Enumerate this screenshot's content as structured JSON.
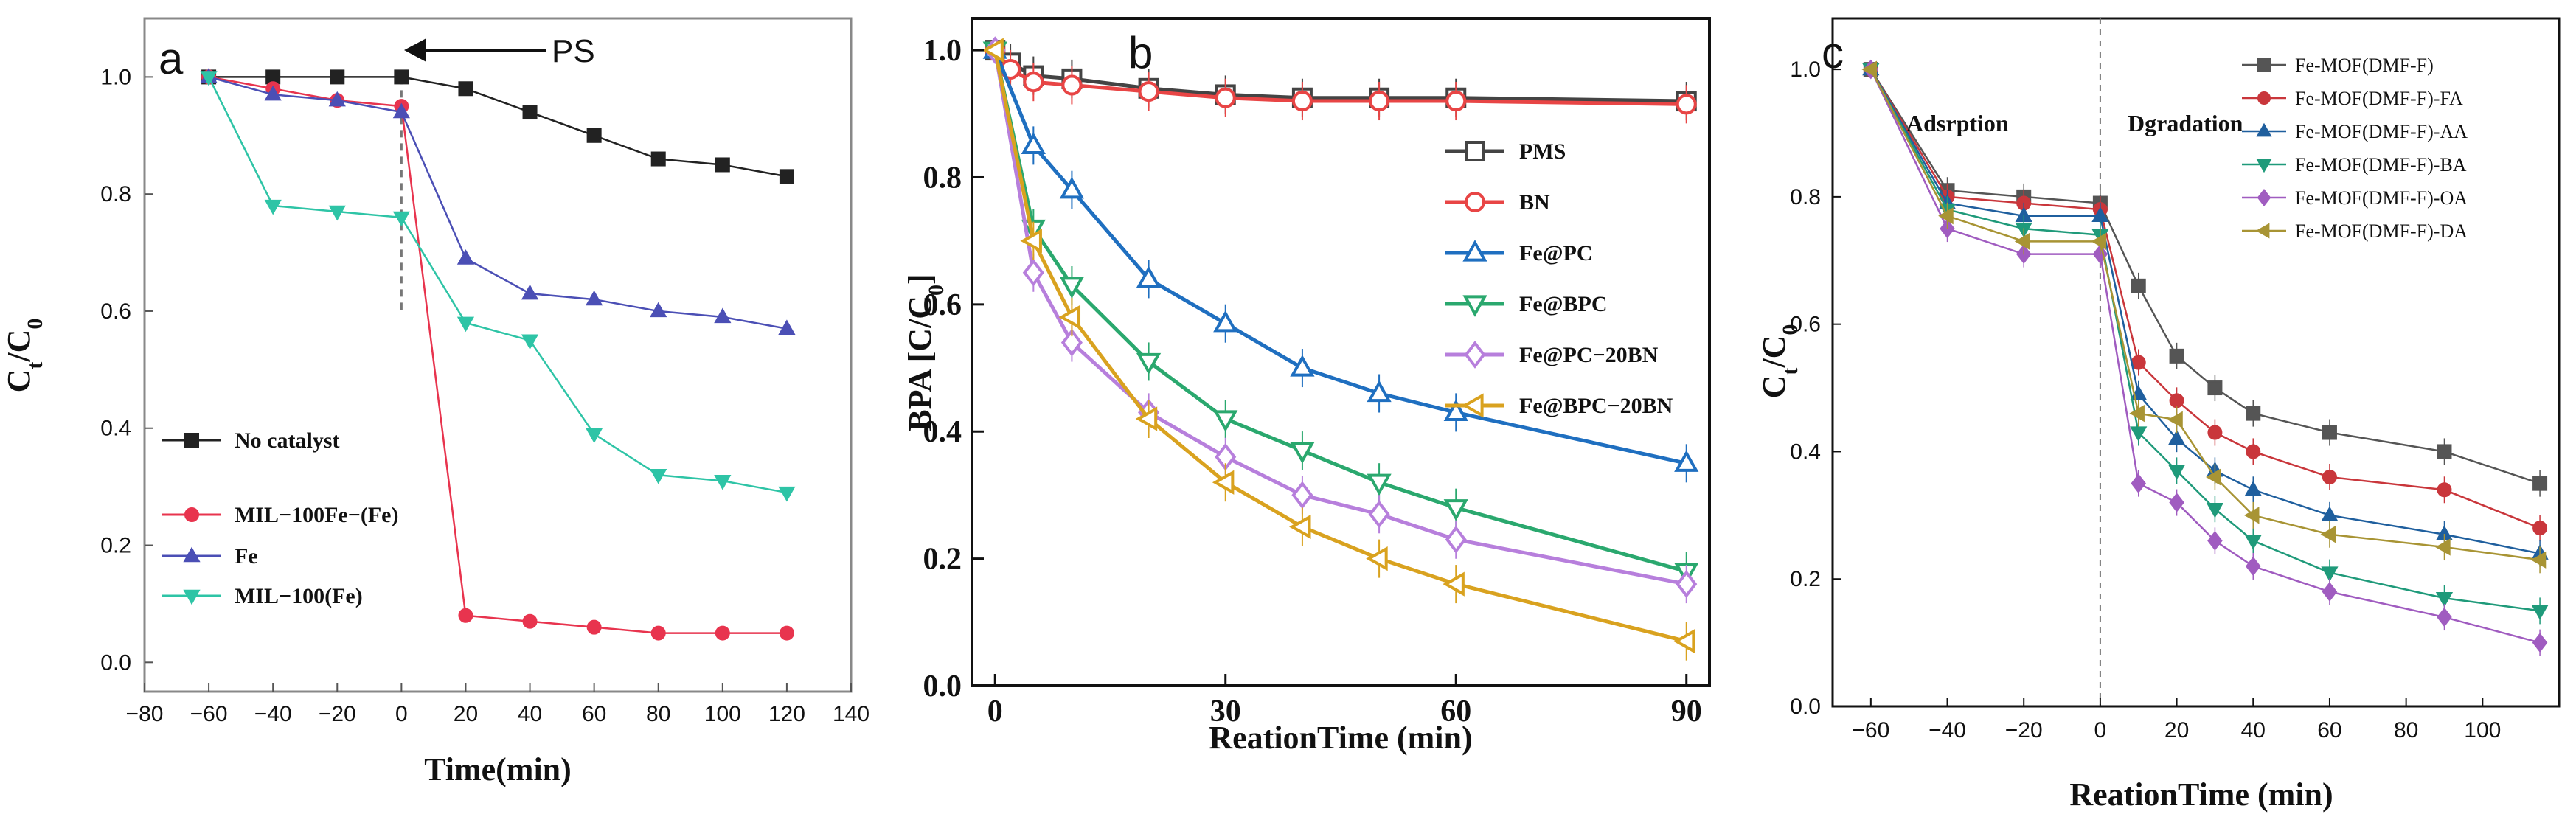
{
  "chart_data": [
    {
      "panel": "a",
      "type": "line",
      "xlabel": "Time(min)",
      "ylabel": "Ct/C0",
      "xlim": [
        -80,
        140
      ],
      "ylim": [
        -0.05,
        1.1
      ],
      "xticks": [
        -80,
        -60,
        -40,
        -20,
        0,
        20,
        40,
        60,
        80,
        100,
        120,
        140
      ],
      "yticks": [
        0.0,
        0.2,
        0.4,
        0.6,
        0.8,
        1.0
      ],
      "annotation": "PS",
      "legend_position": "bottom-left",
      "series": [
        {
          "name": "No catalyst",
          "color": "#222222",
          "marker": "square",
          "x": [
            -60,
            -40,
            -20,
            0,
            20,
            40,
            60,
            80,
            100,
            120
          ],
          "y": [
            1.0,
            1.0,
            1.0,
            1.0,
            0.98,
            0.94,
            0.9,
            0.86,
            0.85,
            0.83
          ]
        },
        {
          "name": "MIL−100Fe−(Fe)",
          "color": "#e8344e",
          "marker": "circle",
          "x": [
            -60,
            -40,
            -20,
            0,
            20,
            40,
            60,
            80,
            100,
            120
          ],
          "y": [
            1.0,
            0.98,
            0.96,
            0.95,
            0.08,
            0.07,
            0.06,
            0.05,
            0.05,
            0.05
          ]
        },
        {
          "name": "Fe",
          "color": "#4b4fb5",
          "marker": "triangle-up",
          "x": [
            -60,
            -40,
            -20,
            0,
            20,
            40,
            60,
            80,
            100,
            120
          ],
          "y": [
            1.0,
            0.97,
            0.96,
            0.94,
            0.69,
            0.63,
            0.62,
            0.6,
            0.59,
            0.57
          ]
        },
        {
          "name": "MIL−100(Fe)",
          "color": "#2ec4a6",
          "marker": "triangle-down",
          "x": [
            -60,
            -40,
            -20,
            0,
            20,
            40,
            60,
            80,
            100,
            120
          ],
          "y": [
            1.0,
            0.78,
            0.77,
            0.76,
            0.58,
            0.55,
            0.39,
            0.32,
            0.31,
            0.29
          ]
        }
      ]
    },
    {
      "panel": "b",
      "type": "line",
      "xlabel": "ReationTime (min)",
      "ylabel": "BPA [C/C0]",
      "xlim": [
        -3,
        93
      ],
      "ylim": [
        0.0,
        1.05
      ],
      "xticks": [
        0,
        30,
        60,
        90
      ],
      "yticks": [
        0.0,
        0.2,
        0.4,
        0.6,
        0.8,
        1.0
      ],
      "legend_position": "right-middle",
      "series": [
        {
          "name": "PMS",
          "color": "#444444",
          "marker": "square-open",
          "x": [
            0,
            2,
            5,
            10,
            20,
            30,
            40,
            50,
            60,
            90
          ],
          "y": [
            1.0,
            0.98,
            0.96,
            0.955,
            0.94,
            0.93,
            0.925,
            0.925,
            0.925,
            0.92
          ]
        },
        {
          "name": "BN",
          "color": "#e84545",
          "marker": "circle-open",
          "x": [
            0,
            2,
            5,
            10,
            20,
            30,
            40,
            50,
            60,
            90
          ],
          "y": [
            1.0,
            0.97,
            0.95,
            0.945,
            0.935,
            0.925,
            0.92,
            0.92,
            0.92,
            0.915
          ]
        },
        {
          "name": "Fe@PC",
          "color": "#1f6fc0",
          "marker": "triangle-up-open",
          "x": [
            0,
            5,
            10,
            20,
            30,
            40,
            50,
            60,
            90
          ],
          "y": [
            1.0,
            0.85,
            0.78,
            0.64,
            0.57,
            0.5,
            0.46,
            0.43,
            0.35
          ]
        },
        {
          "name": "Fe@BPC",
          "color": "#2aa86e",
          "marker": "triangle-down-open",
          "x": [
            0,
            5,
            10,
            20,
            30,
            40,
            50,
            60,
            90
          ],
          "y": [
            1.0,
            0.72,
            0.63,
            0.51,
            0.42,
            0.37,
            0.32,
            0.28,
            0.18
          ]
        },
        {
          "name": "Fe@PC−20BN",
          "color": "#b77fdc",
          "marker": "diamond-open",
          "x": [
            0,
            5,
            10,
            20,
            30,
            40,
            50,
            60,
            90
          ],
          "y": [
            1.0,
            0.65,
            0.54,
            0.43,
            0.36,
            0.3,
            0.27,
            0.23,
            0.16
          ]
        },
        {
          "name": "Fe@BPC−20BN",
          "color": "#d9a21f",
          "marker": "triangle-left-open",
          "x": [
            0,
            5,
            10,
            20,
            30,
            40,
            50,
            60,
            90
          ],
          "y": [
            1.0,
            0.7,
            0.58,
            0.42,
            0.32,
            0.25,
            0.2,
            0.16,
            0.07
          ]
        }
      ]
    },
    {
      "panel": "c",
      "type": "line",
      "xlabel": "ReationTime (min)",
      "ylabel": "Ct/C0",
      "xlim": [
        -70,
        120
      ],
      "ylim": [
        0.0,
        1.08
      ],
      "xticks": [
        -60,
        -40,
        -20,
        0,
        20,
        40,
        60,
        80,
        100
      ],
      "yticks": [
        0.0,
        0.2,
        0.4,
        0.6,
        0.8,
        1.0
      ],
      "annotations": [
        "Adsrption",
        "Dgradation"
      ],
      "legend_position": "top-right",
      "series": [
        {
          "name": "Fe-MOF(DMF-F)",
          "color": "#555555",
          "marker": "square",
          "x": [
            -60,
            -40,
            -20,
            0,
            10,
            20,
            30,
            40,
            60,
            90,
            115
          ],
          "y": [
            1.0,
            0.81,
            0.8,
            0.79,
            0.66,
            0.55,
            0.5,
            0.46,
            0.43,
            0.4,
            0.35
          ]
        },
        {
          "name": "Fe-MOF(DMF-F)-FA",
          "color": "#c9363b",
          "marker": "circle",
          "x": [
            -60,
            -40,
            -20,
            0,
            10,
            20,
            30,
            40,
            60,
            90,
            115
          ],
          "y": [
            1.0,
            0.8,
            0.79,
            0.78,
            0.54,
            0.48,
            0.43,
            0.4,
            0.36,
            0.34,
            0.28
          ]
        },
        {
          "name": "Fe-MOF(DMF-F)-AA",
          "color": "#1f5f9e",
          "marker": "triangle-up",
          "x": [
            -60,
            -40,
            -20,
            0,
            10,
            20,
            30,
            40,
            60,
            90,
            115
          ],
          "y": [
            1.0,
            0.79,
            0.77,
            0.77,
            0.49,
            0.42,
            0.37,
            0.34,
            0.3,
            0.27,
            0.24
          ]
        },
        {
          "name": "Fe-MOF(DMF-F)-BA",
          "color": "#1f9a7a",
          "marker": "triangle-down",
          "x": [
            -60,
            -40,
            -20,
            0,
            10,
            20,
            30,
            40,
            60,
            90,
            115
          ],
          "y": [
            1.0,
            0.78,
            0.75,
            0.74,
            0.43,
            0.37,
            0.31,
            0.26,
            0.21,
            0.17,
            0.15
          ]
        },
        {
          "name": "Fe-MOF(DMF-F)-OA",
          "color": "#a05cc0",
          "marker": "diamond",
          "x": [
            -60,
            -40,
            -20,
            0,
            10,
            20,
            30,
            40,
            60,
            90,
            115
          ],
          "y": [
            1.0,
            0.75,
            0.71,
            0.71,
            0.35,
            0.32,
            0.26,
            0.22,
            0.18,
            0.14,
            0.1
          ]
        },
        {
          "name": "Fe-MOF(DMF-F)-DA",
          "color": "#a89434",
          "marker": "triangle-left",
          "x": [
            -60,
            -40,
            -20,
            0,
            10,
            20,
            30,
            40,
            60,
            90,
            115
          ],
          "y": [
            1.0,
            0.77,
            0.73,
            0.73,
            0.46,
            0.45,
            0.36,
            0.3,
            0.27,
            0.25,
            0.23
          ]
        }
      ]
    }
  ],
  "panel_letters": {
    "a": "a",
    "b": "b",
    "c": "c"
  }
}
